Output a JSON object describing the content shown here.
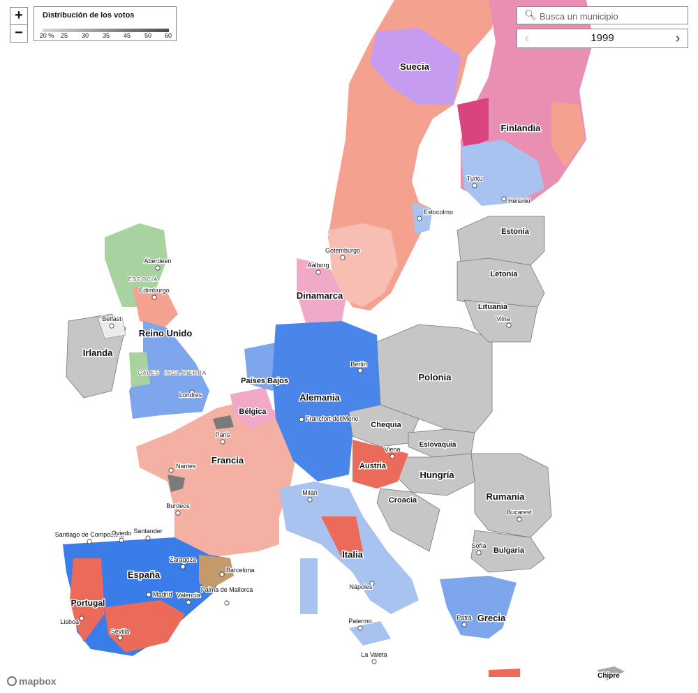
{
  "legend": {
    "title": "Distribución de los votos",
    "ticks": [
      "20 %",
      "25",
      "30",
      "35",
      "45",
      "50",
      "60"
    ]
  },
  "zoom": {
    "in": "+",
    "out": "−"
  },
  "search": {
    "placeholder": "Busca un municipio"
  },
  "year_selector": {
    "value": "1999",
    "prev": "‹",
    "next": "›"
  },
  "attribution": "mapbox",
  "colors": {
    "blue_dark": "#3b7de8",
    "blue_light": "#a9c3f0",
    "red": "#ec6a5a",
    "salmon": "#f4a18f",
    "pink": "#ea8fb4",
    "magenta": "#d9447f",
    "lavender": "#c69cf0",
    "green": "#a8d3a0",
    "brown": "#c49a6c",
    "gray_nonEU": "#c6c6c6",
    "gray_dark": "#7a7a7a"
  },
  "labels": {
    "countries": [
      "Suecia",
      "Finlandia",
      "Dinamarca",
      "Reino Unido",
      "Irlanda",
      "Países Bajos",
      "Bélgica",
      "Alemania",
      "Francia",
      "Polonia",
      "Chequia",
      "Eslovaquia",
      "Austria",
      "Hungría",
      "Rumanía",
      "Croacia",
      "Bulgaria",
      "Italia",
      "España",
      "Portugal",
      "Grecia",
      "Estonia",
      "Letonia",
      "Lituania",
      "Chipre"
    ],
    "regions": [
      "ESCOCIA",
      "GALES",
      "INGLATERRA"
    ],
    "cities": [
      "Turku",
      "Helsinki",
      "Estocolmo",
      "Gotemburgo",
      "Aalborg",
      "Aberdeen",
      "Edimburgo",
      "Belfast",
      "Berlín",
      "Londres",
      "Francfort del Meno",
      "París",
      "Nantes",
      "Burdeos",
      "Viena",
      "Milán",
      "Bucarest",
      "Sofía",
      "Santiago de Compostela",
      "Oviedo",
      "Santander",
      "Zaragoza",
      "Barcelona",
      "Madrid",
      "Valencia",
      "Palma de Mallorca",
      "Lisboa",
      "Sevilla",
      "Nápoles",
      "Palermo",
      "La Valeta",
      "Patra",
      "Vilna"
    ]
  }
}
